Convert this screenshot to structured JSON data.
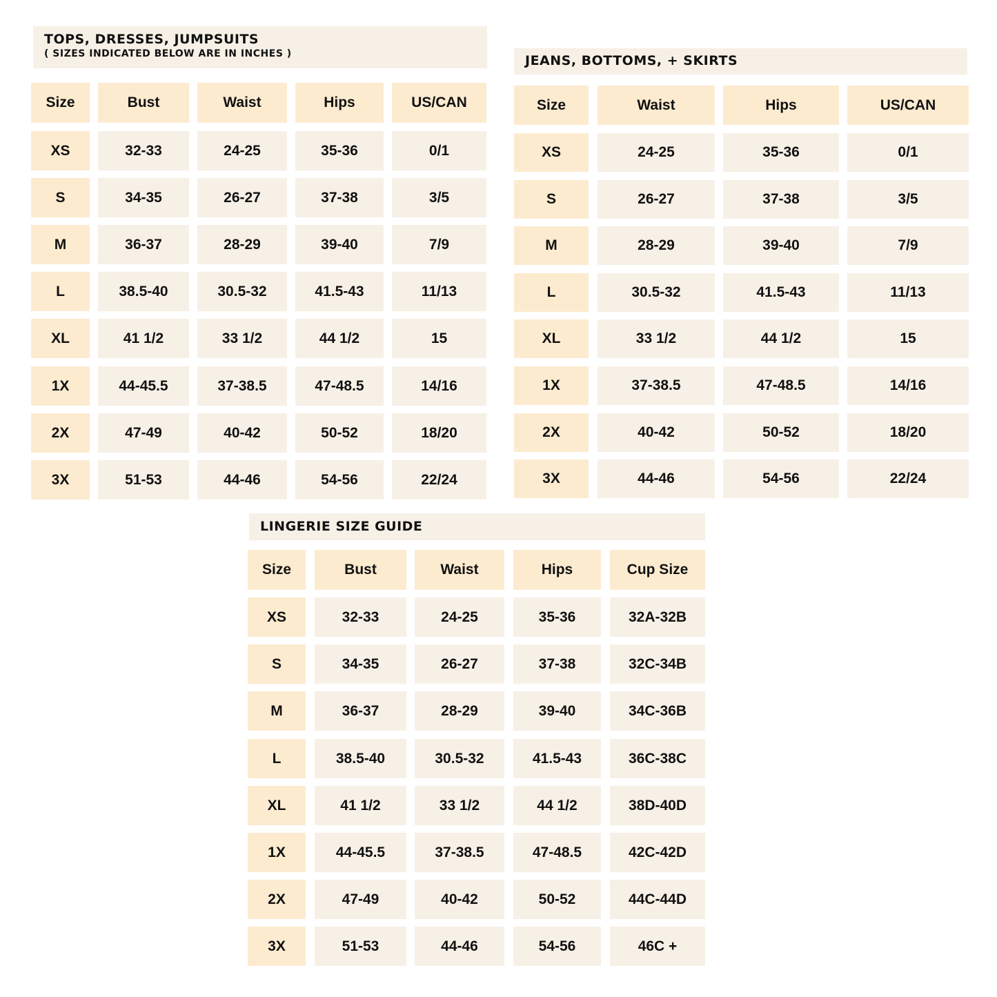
{
  "colors": {
    "header": "#fdebd0",
    "cell": "#f7f0e6",
    "text": "#111111"
  },
  "tables": [
    {
      "title": "TOPS, DRESSES, JUMPSUITS",
      "subtitle": "( SIZES INDICATED BELOW ARE IN INCHES )",
      "headers": [
        "Size",
        "Bust",
        "Waist",
        "Hips",
        "US/CAN"
      ],
      "rows": [
        [
          "XS",
          "32-33",
          "24-25",
          "35-36",
          "0/1"
        ],
        [
          "S",
          "34-35",
          "26-27",
          "37-38",
          "3/5"
        ],
        [
          "M",
          "36-37",
          "28-29",
          "39-40",
          "7/9"
        ],
        [
          "L",
          "38.5-40",
          "30.5-32",
          "41.5-43",
          "11/13"
        ],
        [
          "XL",
          "41 1/2",
          "33 1/2",
          "44 1/2",
          "15"
        ],
        [
          "1X",
          "44-45.5",
          "37-38.5",
          "47-48.5",
          "14/16"
        ],
        [
          "2X",
          "47-49",
          "40-42",
          "50-52",
          "18/20"
        ],
        [
          "3X",
          "51-53",
          "44-46",
          "54-56",
          "22/24"
        ]
      ]
    },
    {
      "title": "JEANS, BOTTOMS, + SKIRTS",
      "headers": [
        "Size",
        "Waist",
        "Hips",
        "US/CAN"
      ],
      "rows": [
        [
          "XS",
          "24-25",
          "35-36",
          "0/1"
        ],
        [
          "S",
          "26-27",
          "37-38",
          "3/5"
        ],
        [
          "M",
          "28-29",
          "39-40",
          "7/9"
        ],
        [
          "L",
          "30.5-32",
          "41.5-43",
          "11/13"
        ],
        [
          "XL",
          "33 1/2",
          "44 1/2",
          "15"
        ],
        [
          "1X",
          "37-38.5",
          "47-48.5",
          "14/16"
        ],
        [
          "2X",
          "40-42",
          "50-52",
          "18/20"
        ],
        [
          "3X",
          "44-46",
          "54-56",
          "22/24"
        ]
      ]
    },
    {
      "title": "LINGERIE SIZE GUIDE",
      "headers": [
        "Size",
        "Bust",
        "Waist",
        "Hips",
        "Cup Size"
      ],
      "rows": [
        [
          "XS",
          "32-33",
          "24-25",
          "35-36",
          "32A-32B"
        ],
        [
          "S",
          "34-35",
          "26-27",
          "37-38",
          "32C-34B"
        ],
        [
          "M",
          "36-37",
          "28-29",
          "39-40",
          "34C-36B"
        ],
        [
          "L",
          "38.5-40",
          "30.5-32",
          "41.5-43",
          "36C-38C"
        ],
        [
          "XL",
          "41 1/2",
          "33 1/2",
          "44 1/2",
          "38D-40D"
        ],
        [
          "1X",
          "44-45.5",
          "37-38.5",
          "47-48.5",
          "42C-42D"
        ],
        [
          "2X",
          "47-49",
          "40-42",
          "50-52",
          "44C-44D"
        ],
        [
          "3X",
          "51-53",
          "44-46",
          "54-56",
          "46C +"
        ]
      ]
    }
  ]
}
